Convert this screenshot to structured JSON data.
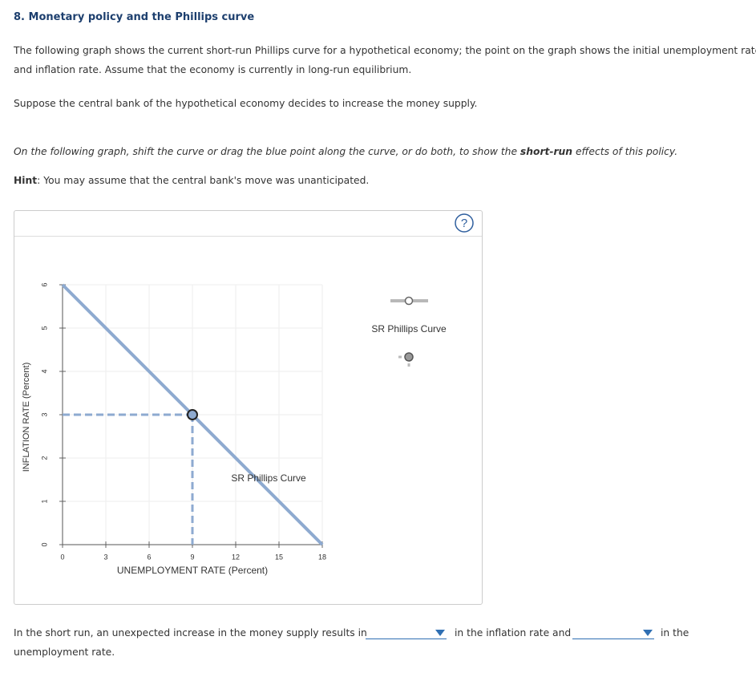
{
  "header": {
    "title": "8. Monetary policy and the Phillips curve"
  },
  "intro": {
    "lines": [
      "The following graph shows the current short-run Phillips curve for a hypothetical economy; the point on the graph shows the initial unemployment rate",
      "and inflation rate. Assume that the economy is currently in long-run equilibrium."
    ]
  },
  "scenario": "Suppose the central bank of the hypothetical economy decides to increase the money supply.",
  "instruction": {
    "before": "On the following graph, shift the curve or drag the blue point along the curve, or do both, to show the ",
    "emphasis": "short-run",
    "after": " effects of this policy."
  },
  "hint": {
    "label": "Hint",
    "text": ": You may assume that the central bank's move was unanticipated."
  },
  "help": {
    "label": "?"
  },
  "chart_data": {
    "type": "line",
    "x_label": "UNEMPLOYMENT RATE (Percent)",
    "y_label": "INFLATION RATE (Percent)",
    "xlim": [
      0,
      18
    ],
    "ylim": [
      0,
      6
    ],
    "xticks": [
      0,
      3,
      6,
      9,
      12,
      15,
      18
    ],
    "yticks": [
      0,
      1,
      2,
      3,
      4,
      5,
      6
    ],
    "grid": true,
    "series": [
      {
        "name": "SR Phillips Curve",
        "color": "#8eaad0",
        "x": [
          0,
          18
        ],
        "values": [
          6,
          0
        ]
      }
    ],
    "point": {
      "x": 9,
      "y": 3,
      "color": "#8eaad0"
    },
    "curve_label": "SR Phillips Curve"
  },
  "question": {
    "lines": [
      "In the short run, an unexpected increase in the money supply results in",
      "in the inflation rate and",
      "in the",
      "unemployment rate."
    ]
  }
}
